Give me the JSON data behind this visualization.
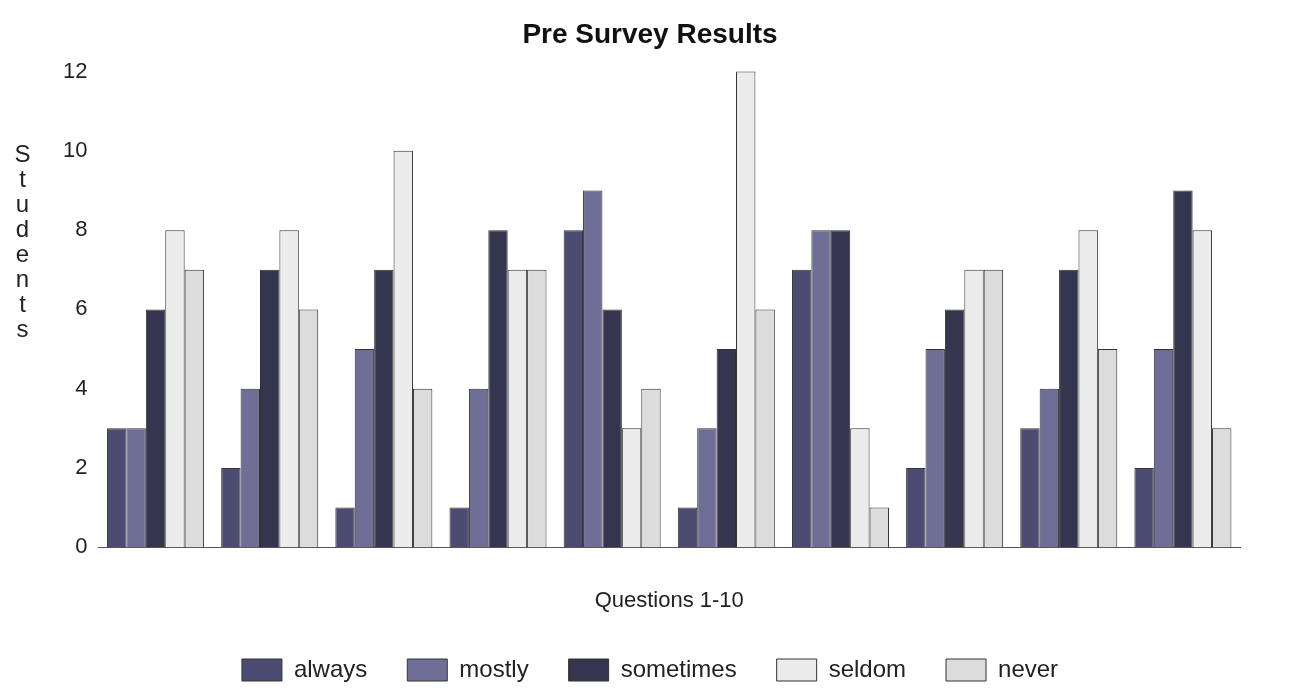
{
  "chart_data": {
    "type": "bar",
    "title": "Pre Survey Results",
    "xlabel": "Questions 1-10",
    "ylabel": "Students",
    "categories": [
      null,
      null,
      null,
      null,
      null,
      null,
      null,
      null,
      null,
      null
    ],
    "series": [
      {
        "name": "always",
        "color": "#4c4c72",
        "values": [
          3,
          2,
          1,
          1,
          8,
          1,
          7,
          2,
          3,
          2
        ]
      },
      {
        "name": "mostly",
        "color": "#6e6e96",
        "values": [
          3,
          4,
          5,
          4,
          9,
          3,
          8,
          5,
          4,
          5
        ]
      },
      {
        "name": "sometimes",
        "color": "#35354f",
        "values": [
          6,
          7,
          7,
          8,
          6,
          5,
          8,
          6,
          7,
          9
        ]
      },
      {
        "name": "seldom",
        "color": "#ececec",
        "values": [
          8,
          8,
          10,
          7,
          3,
          12,
          3,
          7,
          8,
          8
        ]
      },
      {
        "name": "never",
        "color": "#dcdcdc",
        "values": [
          7,
          6,
          4,
          7,
          4,
          6,
          1,
          7,
          5,
          3
        ]
      }
    ],
    "ylim": [
      0,
      12
    ],
    "yticks": [
      0,
      2,
      4,
      6,
      8,
      10,
      12
    ],
    "grid": false,
    "legend": "bottom"
  }
}
